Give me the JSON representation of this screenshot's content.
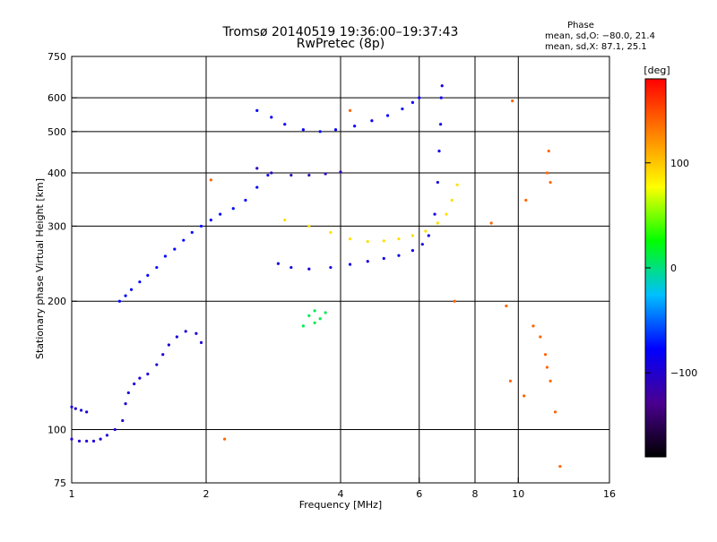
{
  "chart_data": {
    "type": "scatter",
    "title": "Tromsø 20140519 19:36:00–19:37:43",
    "subtitle": "RwPretec (8p)",
    "xlabel": "Frequency [MHz]",
    "ylabel": "Stationary phase Virtual Height [km]",
    "x_scale": "log",
    "y_scale": "log",
    "xlim": [
      1,
      16
    ],
    "ylim": [
      75,
      750
    ],
    "x_ticks": [
      1,
      2,
      4,
      6,
      8,
      10,
      16
    ],
    "x_tick_labels": [
      "1",
      "2",
      "4",
      "6",
      "8",
      "10",
      "16"
    ],
    "y_ticks": [
      75,
      100,
      200,
      300,
      400,
      500,
      600,
      750
    ],
    "y_tick_labels": [
      "75",
      "100",
      "200",
      "300",
      "400",
      "500",
      "600",
      "750"
    ],
    "x_grid": [
      2,
      4,
      6,
      8,
      10
    ],
    "y_grid": [
      100,
      200,
      300,
      400,
      500,
      600
    ],
    "phase_info": {
      "heading": "Phase",
      "line_o": "mean, sd,O: −80.0, 21.4",
      "line_x": "mean, sd,X:  87.1, 25.1"
    },
    "colorbar": {
      "label": "[deg]",
      "range": [
        -180,
        180
      ],
      "ticks": [
        100,
        0,
        -100
      ],
      "tick_labels": [
        "100",
        "0",
        "−100"
      ],
      "colors": [
        "#000000",
        "#4a0090",
        "#0000ff",
        "#00c0ff",
        "#00ff00",
        "#ffff00",
        "#ff8000",
        "#ff0000"
      ]
    },
    "series": [
      {
        "name": "low-freq trace (blue)",
        "phase": -95,
        "points": [
          [
            1.0,
            113
          ],
          [
            1.02,
            112
          ],
          [
            1.05,
            111
          ],
          [
            1.08,
            110
          ],
          [
            1.0,
            95
          ],
          [
            1.04,
            94
          ],
          [
            1.08,
            94
          ],
          [
            1.12,
            94
          ],
          [
            1.16,
            95
          ],
          [
            1.2,
            97
          ],
          [
            1.25,
            100
          ],
          [
            1.3,
            105
          ],
          [
            1.32,
            115
          ],
          [
            1.34,
            122
          ],
          [
            1.38,
            128
          ],
          [
            1.42,
            132
          ],
          [
            1.48,
            135
          ],
          [
            1.55,
            142
          ],
          [
            1.6,
            150
          ],
          [
            1.65,
            158
          ],
          [
            1.72,
            165
          ],
          [
            1.8,
            170
          ],
          [
            1.9,
            168
          ],
          [
            1.95,
            160
          ]
        ]
      },
      {
        "name": "mid-frequency band (light blue)",
        "phase": -75,
        "points": [
          [
            1.28,
            200
          ],
          [
            1.32,
            206
          ],
          [
            1.36,
            213
          ],
          [
            1.42,
            222
          ],
          [
            1.48,
            230
          ],
          [
            1.55,
            240
          ],
          [
            1.62,
            255
          ],
          [
            1.7,
            265
          ],
          [
            1.78,
            278
          ],
          [
            1.86,
            290
          ],
          [
            1.95,
            300
          ],
          [
            2.05,
            310
          ],
          [
            2.15,
            320
          ],
          [
            2.3,
            330
          ],
          [
            2.45,
            345
          ],
          [
            2.6,
            370
          ],
          [
            2.75,
            395
          ]
        ]
      },
      {
        "name": "F-layer O trace (blue/purple)",
        "phase": -90,
        "points": [
          [
            2.9,
            245
          ],
          [
            3.1,
            240
          ],
          [
            3.4,
            238
          ],
          [
            3.8,
            240
          ],
          [
            4.2,
            244
          ],
          [
            4.6,
            248
          ],
          [
            5.0,
            252
          ],
          [
            5.4,
            256
          ],
          [
            5.8,
            263
          ],
          [
            6.1,
            272
          ],
          [
            6.3,
            285
          ],
          [
            6.5,
            320
          ],
          [
            6.6,
            380
          ],
          [
            6.65,
            450
          ],
          [
            6.7,
            520
          ],
          [
            6.72,
            600
          ],
          [
            6.75,
            640
          ]
        ]
      },
      {
        "name": "F-layer X trace (yellow)",
        "phase": 90,
        "points": [
          [
            3.0,
            310
          ],
          [
            3.4,
            300
          ],
          [
            3.8,
            290
          ],
          [
            4.2,
            280
          ],
          [
            4.6,
            276
          ],
          [
            5.0,
            277
          ],
          [
            5.4,
            280
          ],
          [
            5.8,
            285
          ],
          [
            6.2,
            292
          ],
          [
            6.6,
            305
          ],
          [
            6.9,
            320
          ],
          [
            7.1,
            345
          ],
          [
            7.3,
            375
          ]
        ]
      },
      {
        "name": "multiple echo ~500 km",
        "phase": -80,
        "points": [
          [
            2.6,
            560
          ],
          [
            2.8,
            540
          ],
          [
            3.0,
            520
          ],
          [
            3.3,
            505
          ],
          [
            3.6,
            500
          ],
          [
            3.9,
            505
          ],
          [
            4.3,
            515
          ],
          [
            4.7,
            530
          ],
          [
            5.1,
            545
          ],
          [
            5.5,
            565
          ],
          [
            5.8,
            585
          ],
          [
            6.0,
            600
          ]
        ]
      },
      {
        "name": "echo ~400 km (purple)",
        "phase": -110,
        "points": [
          [
            2.6,
            410
          ],
          [
            2.8,
            400
          ],
          [
            3.1,
            395
          ],
          [
            3.4,
            395
          ],
          [
            3.7,
            398
          ],
          [
            4.0,
            402
          ]
        ]
      },
      {
        "name": "green patch",
        "phase": 10,
        "points": [
          [
            3.4,
            185
          ],
          [
            3.5,
            178
          ],
          [
            3.6,
            182
          ],
          [
            3.5,
            190
          ],
          [
            3.7,
            188
          ],
          [
            3.3,
            175
          ]
        ]
      },
      {
        "name": "scattered red/orange noise",
        "phase": 140,
        "points": [
          [
            2.05,
            385
          ],
          [
            2.2,
            95
          ],
          [
            4.2,
            560
          ],
          [
            8.7,
            305
          ],
          [
            9.4,
            195
          ],
          [
            9.6,
            130
          ],
          [
            10.3,
            120
          ],
          [
            10.4,
            345
          ],
          [
            10.8,
            175
          ],
          [
            11.2,
            165
          ],
          [
            11.5,
            150
          ],
          [
            11.6,
            140
          ],
          [
            11.8,
            130
          ],
          [
            12.1,
            110
          ],
          [
            12.4,
            82
          ],
          [
            11.6,
            400
          ],
          [
            11.7,
            450
          ],
          [
            11.8,
            380
          ],
          [
            9.7,
            590
          ],
          [
            7.2,
            200
          ]
        ]
      }
    ]
  }
}
